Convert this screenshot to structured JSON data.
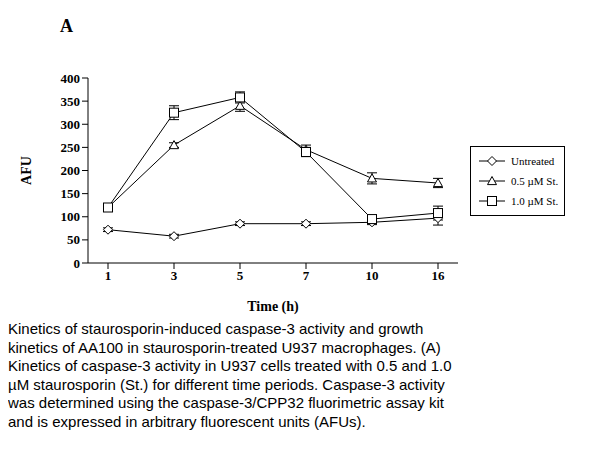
{
  "panel_label": "A",
  "caption": "Kinetics of staurosporin-induced caspase-3 activity and growth kinetics of AA100 in staurosporin-treated U937 macrophages. (A) Kinetics of caspase-3 activity in U937 cells treated with 0.5 and 1.0 µM staurosporin (St.) for different time periods. Caspase-3 activity was determined using the caspase-3/CPP32 fluorimetric assay kit and is expressed in arbitrary fluorescent units (AFUs).",
  "chart_data": {
    "type": "line",
    "x_label": "Time (h)",
    "y_label": "AFU",
    "categories": [
      1,
      3,
      5,
      7,
      10,
      16
    ],
    "ylim": [
      0,
      400
    ],
    "yticks": [
      0,
      50,
      100,
      150,
      200,
      250,
      300,
      350,
      400
    ],
    "grid": false,
    "legend": "right",
    "series": [
      {
        "name": "Untreated",
        "color": "#000000",
        "marker": "diamond",
        "values": [
          72,
          58,
          85,
          85,
          88,
          97
        ],
        "errors": [
          4,
          4,
          4,
          4,
          5,
          15
        ]
      },
      {
        "name": "0.5 µM St.",
        "color": "#000000",
        "marker": "triangle",
        "values": [
          120,
          255,
          340,
          245,
          183,
          173
        ],
        "errors": [
          5,
          5,
          12,
          10,
          12,
          10
        ]
      },
      {
        "name": "1.0 µM St.",
        "color": "#000000",
        "marker": "square",
        "values": [
          120,
          325,
          358,
          240,
          95,
          108
        ],
        "errors": [
          5,
          15,
          12,
          10,
          5,
          15
        ]
      }
    ]
  }
}
